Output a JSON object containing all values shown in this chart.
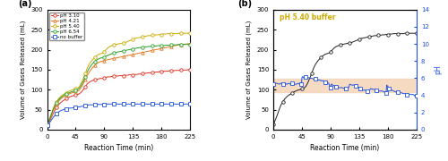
{
  "panel_a": {
    "label": "(a)",
    "xlabel": "Reaction Time (min)",
    "ylabel": "Volume of Gases Released (mL)",
    "xlim": [
      0,
      225
    ],
    "ylim": [
      0,
      300
    ],
    "xticks": [
      0,
      45,
      90,
      135,
      180,
      225
    ],
    "yticks": [
      0,
      50,
      100,
      150,
      200,
      250,
      300
    ],
    "series": {
      "pH3.10": {
        "color": "#e03020",
        "marker": "o",
        "label": "pH 3.10",
        "x": [
          0,
          3,
          6,
          9,
          12,
          15,
          18,
          21,
          24,
          27,
          30,
          33,
          36,
          39,
          42,
          45,
          48,
          51,
          54,
          57,
          60,
          63,
          66,
          69,
          72,
          75,
          78,
          81,
          84,
          87,
          90,
          93,
          96,
          99,
          102,
          105,
          108,
          111,
          114,
          117,
          120,
          123,
          126,
          129,
          132,
          135,
          138,
          141,
          144,
          147,
          150,
          153,
          156,
          159,
          162,
          165,
          168,
          171,
          174,
          177,
          180,
          183,
          186,
          189,
          192,
          195,
          198,
          201,
          204,
          207,
          210,
          213,
          216,
          219,
          222,
          225
        ],
        "y": [
          10,
          18,
          28,
          38,
          48,
          56,
          62,
          67,
          71,
          74,
          77,
          80,
          82,
          84,
          85,
          87,
          88,
          90,
          94,
          100,
          107,
          114,
          118,
          121,
          123,
          125,
          126,
          127,
          128,
          128,
          130,
          131,
          132,
          132,
          133,
          133,
          134,
          134,
          135,
          135,
          135,
          136,
          136,
          137,
          137,
          137,
          138,
          138,
          139,
          139,
          140,
          141,
          141,
          142,
          142,
          143,
          143,
          144,
          144,
          145,
          145,
          146,
          146,
          146,
          147,
          147,
          147,
          148,
          148,
          148,
          149,
          149,
          149,
          149,
          150,
          150
        ]
      },
      "pH4.21": {
        "color": "#e07820",
        "marker": "^",
        "label": "pH 4.21",
        "x": [
          0,
          3,
          6,
          9,
          12,
          15,
          18,
          21,
          24,
          27,
          30,
          33,
          36,
          39,
          42,
          45,
          48,
          51,
          54,
          57,
          60,
          63,
          66,
          69,
          72,
          75,
          78,
          81,
          84,
          87,
          90,
          93,
          96,
          99,
          102,
          105,
          108,
          111,
          114,
          117,
          120,
          123,
          126,
          129,
          132,
          135,
          138,
          141,
          144,
          147,
          150,
          153,
          156,
          159,
          162,
          165,
          168,
          171,
          174,
          177,
          180,
          183,
          186,
          189,
          192,
          195,
          198,
          201,
          204,
          207,
          210,
          213,
          216,
          219,
          222,
          225
        ],
        "y": [
          12,
          22,
          34,
          46,
          57,
          65,
          71,
          76,
          80,
          83,
          86,
          88,
          90,
          92,
          93,
          95,
          96,
          99,
          106,
          115,
          125,
          135,
          143,
          150,
          156,
          161,
          165,
          168,
          170,
          171,
          173,
          174,
          175,
          176,
          177,
          178,
          179,
          180,
          181,
          182,
          183,
          184,
          185,
          186,
          187,
          188,
          189,
          190,
          191,
          192,
          193,
          194,
          195,
          196,
          197,
          198,
          199,
          200,
          201,
          202,
          203,
          204,
          205,
          206,
          207,
          208,
          209,
          210,
          211,
          212,
          213,
          213,
          214,
          214,
          215,
          215
        ]
      },
      "pH5.40": {
        "color": "#ccaa00",
        "marker": "o",
        "label": "pH 5.40",
        "x": [
          0,
          3,
          6,
          9,
          12,
          15,
          18,
          21,
          24,
          27,
          30,
          33,
          36,
          39,
          42,
          45,
          48,
          51,
          54,
          57,
          60,
          63,
          66,
          69,
          72,
          75,
          78,
          81,
          84,
          87,
          90,
          93,
          96,
          99,
          102,
          105,
          108,
          111,
          114,
          117,
          120,
          123,
          126,
          129,
          132,
          135,
          138,
          141,
          144,
          147,
          150,
          153,
          156,
          159,
          162,
          165,
          168,
          171,
          174,
          177,
          180,
          183,
          186,
          189,
          192,
          195,
          198,
          201,
          204,
          207,
          210,
          213,
          216,
          219,
          222,
          225
        ],
        "y": [
          13,
          24,
          36,
          50,
          62,
          70,
          77,
          82,
          86,
          89,
          92,
          95,
          97,
          99,
          100,
          102,
          104,
          108,
          117,
          128,
          140,
          153,
          163,
          170,
          176,
          181,
          185,
          188,
          190,
          191,
          195,
          200,
          205,
          208,
          210,
          212,
          213,
          214,
          215,
          216,
          217,
          218,
          220,
          222,
          224,
          226,
          228,
          229,
          230,
          231,
          232,
          233,
          234,
          235,
          235,
          236,
          236,
          237,
          237,
          238,
          238,
          239,
          239,
          240,
          240,
          240,
          240,
          240,
          240,
          241,
          241,
          241,
          241,
          241,
          241,
          241
        ]
      },
      "pH6.54": {
        "color": "#28a028",
        "marker": "o",
        "label": "pH 6.54",
        "x": [
          0,
          3,
          6,
          9,
          12,
          15,
          18,
          21,
          24,
          27,
          30,
          33,
          36,
          39,
          42,
          45,
          48,
          51,
          54,
          57,
          60,
          63,
          66,
          69,
          72,
          75,
          78,
          81,
          84,
          87,
          90,
          93,
          96,
          99,
          102,
          105,
          108,
          111,
          114,
          117,
          120,
          123,
          126,
          129,
          132,
          135,
          138,
          141,
          144,
          147,
          150,
          153,
          156,
          159,
          162,
          165,
          168,
          171,
          174,
          177,
          180,
          183,
          186,
          189,
          192,
          195,
          198,
          201,
          204,
          207,
          210,
          213,
          216,
          219,
          222,
          225
        ],
        "y": [
          12,
          22,
          34,
          48,
          59,
          68,
          74,
          79,
          83,
          87,
          89,
          91,
          93,
          95,
          96,
          98,
          100,
          104,
          112,
          121,
          132,
          144,
          153,
          160,
          166,
          170,
          174,
          177,
          179,
          180,
          182,
          184,
          186,
          188,
          190,
          192,
          193,
          194,
          195,
          196,
          197,
          198,
          199,
          200,
          201,
          202,
          203,
          204,
          205,
          205,
          206,
          207,
          207,
          208,
          208,
          209,
          209,
          209,
          210,
          210,
          210,
          210,
          211,
          211,
          211,
          212,
          212,
          212,
          212,
          213,
          213,
          213,
          213,
          213,
          213,
          213
        ]
      },
      "no_buffer": {
        "color": "#2050e0",
        "marker": "s",
        "label": "no buffer",
        "x": [
          0,
          3,
          6,
          9,
          12,
          15,
          18,
          21,
          24,
          27,
          30,
          33,
          36,
          39,
          42,
          45,
          48,
          51,
          54,
          57,
          60,
          63,
          66,
          69,
          72,
          75,
          78,
          81,
          84,
          87,
          90,
          93,
          96,
          99,
          102,
          105,
          108,
          111,
          114,
          117,
          120,
          123,
          126,
          129,
          132,
          135,
          138,
          141,
          144,
          147,
          150,
          153,
          156,
          159,
          162,
          165,
          168,
          171,
          174,
          177,
          180,
          183,
          186,
          189,
          192,
          195,
          198,
          201,
          204,
          207,
          210,
          213,
          216,
          219,
          222,
          225
        ],
        "y": [
          10,
          15,
          22,
          29,
          35,
          40,
          44,
          47,
          49,
          51,
          52,
          53,
          54,
          54,
          55,
          55,
          56,
          57,
          58,
          59,
          60,
          61,
          62,
          62,
          62,
          63,
          63,
          63,
          63,
          63,
          63,
          64,
          64,
          64,
          64,
          64,
          64,
          64,
          64,
          64,
          64,
          64,
          64,
          64,
          64,
          64,
          64,
          64,
          64,
          64,
          64,
          64,
          64,
          64,
          64,
          64,
          64,
          64,
          64,
          64,
          64,
          64,
          64,
          64,
          64,
          64,
          64,
          64,
          64,
          64,
          64,
          64,
          64,
          64,
          64,
          64
        ]
      }
    }
  },
  "panel_b": {
    "label": "(b)",
    "xlabel": "Reaction Time (min)",
    "ylabel": "Volume of Gases Released (mL)",
    "ylabel2": "pH",
    "xlim": [
      0,
      225
    ],
    "ylim": [
      0,
      300
    ],
    "ylim2": [
      0,
      14
    ],
    "xticks": [
      0,
      45,
      90,
      135,
      180,
      225
    ],
    "yticks": [
      0,
      50,
      100,
      150,
      200,
      250,
      300
    ],
    "yticks2": [
      0,
      2,
      4,
      6,
      8,
      10,
      12,
      14
    ],
    "annotation": "pH 5.40 buffer",
    "annotation_color": "#ccaa00",
    "shade_ymin": 93,
    "shade_ymax": 128,
    "shade_color": "#f5d5b8",
    "gas_series": {
      "color": "#222222",
      "marker": "o",
      "x": [
        0,
        3,
        6,
        9,
        12,
        15,
        18,
        21,
        24,
        27,
        30,
        33,
        36,
        39,
        42,
        45,
        48,
        51,
        54,
        57,
        60,
        63,
        66,
        69,
        72,
        75,
        78,
        81,
        84,
        87,
        90,
        93,
        96,
        99,
        102,
        105,
        108,
        111,
        114,
        117,
        120,
        123,
        126,
        129,
        132,
        135,
        138,
        141,
        144,
        147,
        150,
        153,
        156,
        159,
        162,
        165,
        168,
        171,
        174,
        177,
        180,
        183,
        186,
        189,
        192,
        195,
        198,
        201,
        204,
        207,
        210,
        213,
        216,
        219,
        222,
        225
      ],
      "y": [
        13,
        24,
        36,
        50,
        62,
        70,
        77,
        82,
        86,
        89,
        92,
        95,
        97,
        99,
        100,
        102,
        104,
        108,
        117,
        128,
        140,
        153,
        163,
        170,
        176,
        181,
        185,
        188,
        190,
        191,
        195,
        200,
        205,
        208,
        210,
        212,
        213,
        214,
        215,
        216,
        217,
        218,
        220,
        222,
        224,
        226,
        228,
        229,
        230,
        231,
        232,
        233,
        234,
        235,
        235,
        236,
        236,
        237,
        237,
        238,
        238,
        239,
        239,
        240,
        240,
        240,
        240,
        240,
        240,
        241,
        241,
        241,
        241,
        241,
        241,
        241
      ]
    },
    "ph_series": {
      "color": "#2050e0",
      "marker": "s",
      "x": [
        0,
        3,
        6,
        9,
        12,
        15,
        18,
        21,
        24,
        27,
        30,
        33,
        36,
        39,
        42,
        44,
        45,
        46,
        47,
        48,
        51,
        54,
        57,
        60,
        63,
        66,
        69,
        72,
        75,
        78,
        81,
        84,
        87,
        88,
        89,
        90,
        91,
        92,
        93,
        96,
        99,
        102,
        105,
        108,
        111,
        114,
        117,
        120,
        123,
        126,
        129,
        132,
        133,
        134,
        135,
        136,
        137,
        138,
        141,
        144,
        147,
        150,
        153,
        156,
        159,
        162,
        165,
        168,
        171,
        174,
        177,
        178,
        179,
        180,
        181,
        182,
        183,
        186,
        189,
        192,
        195,
        198,
        201,
        204,
        207,
        210,
        213,
        216,
        219,
        222,
        225
      ],
      "y": [
        5.3,
        5.4,
        5.4,
        5.3,
        5.4,
        5.3,
        5.4,
        5.3,
        5.4,
        5.3,
        5.4,
        5.3,
        5.3,
        5.4,
        5.3,
        5.3,
        6.1,
        6.2,
        6.1,
        6.0,
        6.1,
        6.1,
        6.0,
        6.0,
        5.9,
        5.9,
        5.8,
        5.8,
        5.7,
        5.7,
        5.5,
        5.5,
        5.4,
        5.2,
        5.0,
        4.9,
        5.3,
        5.3,
        5.2,
        5.1,
        5.0,
        4.9,
        4.9,
        4.9,
        4.8,
        4.8,
        4.7,
        5.3,
        5.2,
        5.2,
        5.1,
        5.1,
        5.0,
        4.9,
        4.9,
        4.8,
        4.7,
        4.7,
        4.6,
        4.6,
        4.5,
        4.5,
        4.8,
        4.7,
        4.7,
        4.6,
        4.5,
        4.5,
        4.5,
        4.4,
        4.3,
        5.2,
        5.1,
        5.0,
        4.9,
        4.8,
        4.7,
        4.6,
        4.5,
        4.4,
        4.4,
        4.3,
        4.3,
        4.2,
        4.2,
        4.1,
        4.1,
        4.1,
        4.1,
        4.0,
        4.0
      ]
    }
  }
}
